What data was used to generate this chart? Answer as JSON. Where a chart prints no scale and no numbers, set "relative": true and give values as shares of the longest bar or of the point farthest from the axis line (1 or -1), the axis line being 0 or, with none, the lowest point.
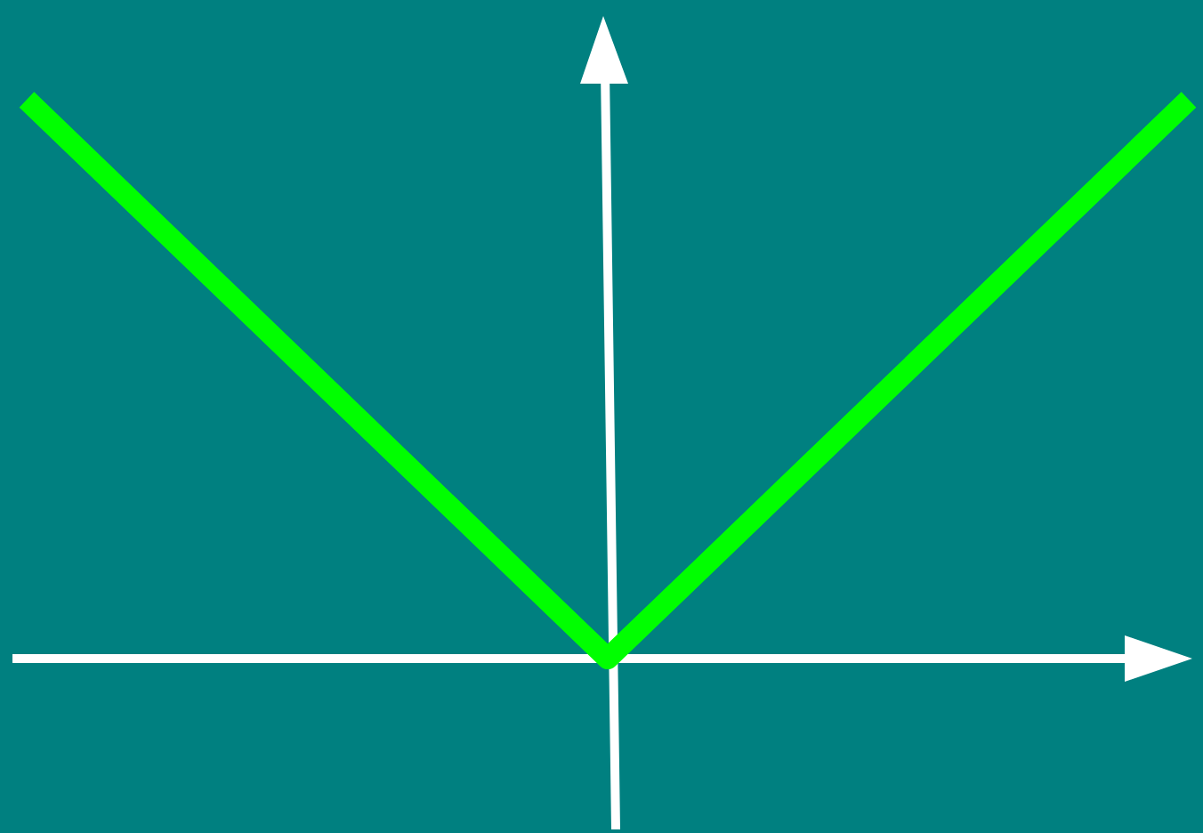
{
  "chart_data": {
    "type": "line",
    "relative": true,
    "categories": [
      null,
      null,
      null
    ],
    "series": [
      {
        "color": "#00ff00",
        "values": [
          1,
          0,
          1
        ]
      }
    ]
  }
}
